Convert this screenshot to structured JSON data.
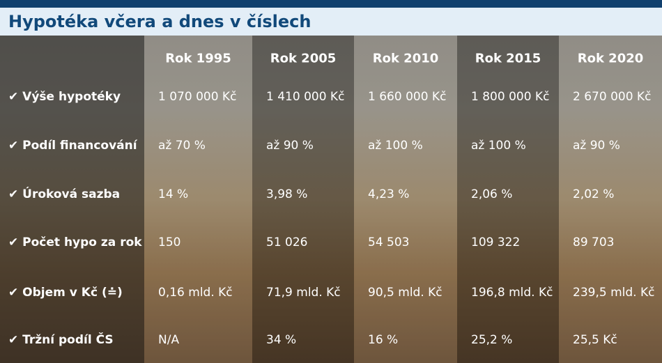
{
  "header": {
    "title": "Hypotéka včera a dnes v číslech"
  },
  "table": {
    "columns": [
      "Rok 1995",
      "Rok 2005",
      "Rok 2010",
      "Rok 2015",
      "Rok 2020"
    ],
    "rows": [
      {
        "label": "✔ Výše hypotéky",
        "cells": [
          "1 070 000 Kč",
          "1 410 000 Kč",
          "1 660 000 Kč",
          "1 800 000 Kč",
          "2 670 000 Kč"
        ]
      },
      {
        "label": "✔ Podíl financování",
        "cells": [
          "až 70 %",
          "až 90 %",
          "až 100 %",
          "až 100 %",
          "až 90 %"
        ]
      },
      {
        "label": "✔ Úroková sazba",
        "cells": [
          "14 %",
          "3,98 %",
          "4,23 %",
          "2,06 %",
          "2,02 %"
        ]
      },
      {
        "label": "✔ Počet hypo za rok",
        "cells": [
          "150",
          "51 026",
          "54 503",
          "109 322",
          "89 703"
        ]
      },
      {
        "label": "✔ Objem v Kč (≐)",
        "cells": [
          "0,16 mld. Kč",
          "71,9 mld. Kč",
          "90,5 mld. Kč",
          "196,8 mld. Kč",
          "239,5 mld. Kč"
        ]
      },
      {
        "label": "✔ Tržní podíl ČS",
        "cells": [
          "N/A",
          "34 %",
          "16 %",
          "25,2 %",
          "25,5 Kč"
        ]
      }
    ]
  }
}
